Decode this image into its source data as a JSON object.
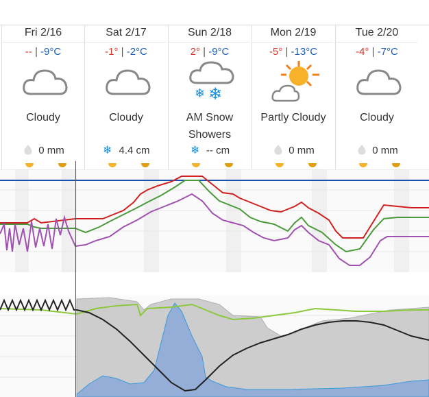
{
  "days": [
    {
      "name": "Fri 2/16",
      "hi": "--",
      "lo": "-9°C",
      "condition": "Cloudy",
      "precip": "0 mm",
      "precip_type": "rain",
      "icon": "cloud-icon"
    },
    {
      "name": "Sat 2/17",
      "hi": "-1°",
      "lo": "-2°C",
      "condition": "Cloudy",
      "precip": "4.4 cm",
      "precip_type": "snow",
      "icon": "cloud-icon"
    },
    {
      "name": "Sun 2/18",
      "hi": "2°",
      "lo": "-9°C",
      "condition": "AM Snow Showers",
      "precip": "-- cm",
      "precip_type": "snow",
      "icon": "cloud-snow-icon"
    },
    {
      "name": "Mon 2/19",
      "hi": "-5°",
      "lo": "-13°C",
      "condition": "Partly Cloudy",
      "precip": "0 mm",
      "precip_type": "rain",
      "icon": "sun-cloud-icon"
    },
    {
      "name": "Tue 2/20",
      "hi": "-4°",
      "lo": "-7°C",
      "condition": "Cloudy",
      "precip": "0 mm",
      "precip_type": "rain",
      "icon": "cloud-icon"
    }
  ],
  "separator": "|",
  "colors": {
    "high": "#d9352b",
    "low": "#1e5fbf",
    "temp_red": "#d02020",
    "temp_green": "#4a9a3a",
    "temp_purple": "#a050b0",
    "freezing_line": "#1a4fb0",
    "pressure": "#222222",
    "humidity": "#8cc83c",
    "cloud_fill": "#c8c8c8",
    "precip_fill": "#8aa8d8",
    "sun_icon": "#f5a623"
  }
}
